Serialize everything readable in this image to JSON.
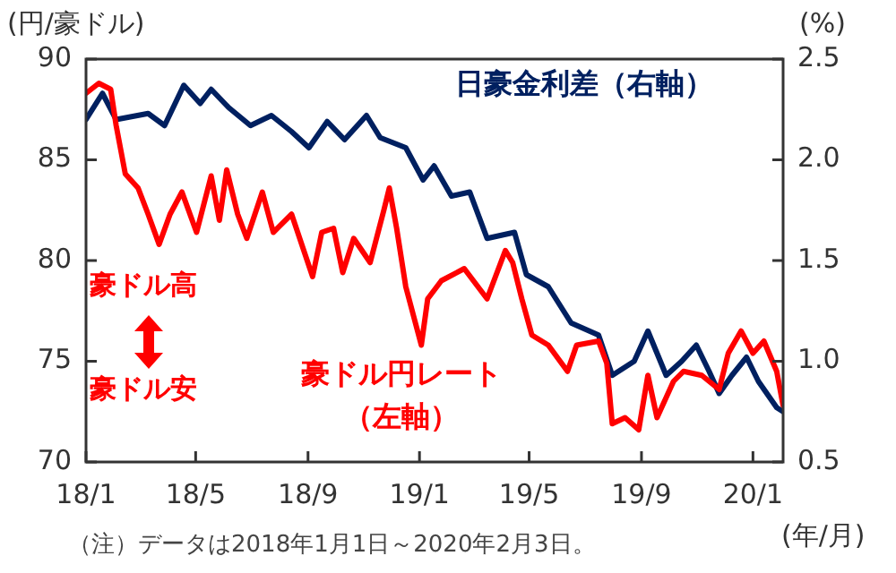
{
  "chart_data": {
    "type": "line",
    "ylabel": "(円/豪ドル)",
    "y2label": "(%)",
    "xlabel": "(年/月)",
    "xlim": [
      "2018-01-01",
      "2020-02-03"
    ],
    "xticks": [
      {
        "value": "2018-01-01",
        "label": "18/1"
      },
      {
        "value": "2018-05-01",
        "label": "18/5"
      },
      {
        "value": "2018-09-01",
        "label": "18/9"
      },
      {
        "value": "2019-01-01",
        "label": "19/1"
      },
      {
        "value": "2019-05-01",
        "label": "19/5"
      },
      {
        "value": "2019-09-01",
        "label": "19/9"
      },
      {
        "value": "2020-01-01",
        "label": "20/1"
      }
    ],
    "ylim": [
      70,
      90
    ],
    "yticks": [
      70,
      75,
      80,
      85,
      90
    ],
    "y2lim": [
      0.5,
      2.5
    ],
    "y2ticks": [
      0.5,
      {
        "value": 1,
        "label": "1.0"
      },
      1.5,
      {
        "value": 2,
        "label": "2.0"
      },
      2.5
    ],
    "grid": false,
    "legend": false,
    "marker": "none",
    "line_style": "solid",
    "annotations": [
      "豪ドル高",
      "豪ドル安",
      "（注）データは2018年1月1日～2020年2月3日。"
    ],
    "series": [
      {
        "name": "豪ドル円レート（左軸）",
        "color": "#ff0000",
        "axis": "y",
        "x": [
          "2018-01-01",
          "2018-01-15",
          "2018-01-28",
          "2018-02-03",
          "2018-02-13",
          "2018-02-27",
          "2018-03-10",
          "2018-03-22",
          "2018-04-03",
          "2018-04-16",
          "2018-05-02",
          "2018-05-18",
          "2018-05-27",
          "2018-06-04",
          "2018-06-16",
          "2018-06-26",
          "2018-07-13",
          "2018-07-25",
          "2018-08-14",
          "2018-09-06",
          "2018-09-16",
          "2018-09-29",
          "2018-10-09",
          "2018-10-21",
          "2018-11-08",
          "2018-11-23",
          "2018-11-29",
          "2018-12-07",
          "2018-12-17",
          "2019-01-03",
          "2019-01-10",
          "2019-01-25",
          "2019-02-19",
          "2019-03-16",
          "2019-04-05",
          "2019-04-13",
          "2019-04-23",
          "2019-05-04",
          "2019-05-22",
          "2019-06-12",
          "2019-06-22",
          "2019-07-16",
          "2019-07-25",
          "2019-07-31",
          "2019-08-14",
          "2019-08-29",
          "2019-09-08",
          "2019-09-18",
          "2019-10-06",
          "2019-10-17",
          "2019-11-06",
          "2019-11-25",
          "2019-12-05",
          "2019-12-19",
          "2020-01-01",
          "2020-01-13",
          "2020-01-27",
          "2020-02-03"
        ],
        "values": [
          88.3,
          88.8,
          88.5,
          86.7,
          84.3,
          83.6,
          82.3,
          80.8,
          82.3,
          83.4,
          81.4,
          84.2,
          82.0,
          84.5,
          82.3,
          81.1,
          83.4,
          81.4,
          82.3,
          79.2,
          81.4,
          81.6,
          79.4,
          81.1,
          79.9,
          82.5,
          83.6,
          81.6,
          78.7,
          75.8,
          78.1,
          79.0,
          79.6,
          78.1,
          80.5,
          79.9,
          78.1,
          76.3,
          75.8,
          74.5,
          75.8,
          76.0,
          74.9,
          71.9,
          72.2,
          71.6,
          74.3,
          72.2,
          74.0,
          74.5,
          74.3,
          73.6,
          75.4,
          76.5,
          75.4,
          76.0,
          74.5,
          72.8
        ]
      },
      {
        "name": "日豪金利差（右軸）",
        "color": "#002060",
        "axis": "y2",
        "x": [
          "2018-01-01",
          "2018-01-19",
          "2018-02-03",
          "2018-03-10",
          "2018-03-28",
          "2018-04-18",
          "2018-05-06",
          "2018-05-18",
          "2018-06-06",
          "2018-06-30",
          "2018-07-23",
          "2018-08-14",
          "2018-09-02",
          "2018-09-22",
          "2018-10-11",
          "2018-11-04",
          "2018-11-19",
          "2018-12-17",
          "2019-01-05",
          "2019-01-17",
          "2019-02-05",
          "2019-02-25",
          "2019-03-16",
          "2019-04-15",
          "2019-04-28",
          "2019-05-22",
          "2019-06-16",
          "2019-07-16",
          "2019-07-31",
          "2019-08-24",
          "2019-09-08",
          "2019-09-28",
          "2019-10-15",
          "2019-10-31",
          "2019-11-14",
          "2019-11-25",
          "2019-12-09",
          "2019-12-25",
          "2020-01-07",
          "2020-01-27",
          "2020-02-03"
        ],
        "values": [
          2.2,
          2.33,
          2.2,
          2.23,
          2.17,
          2.37,
          2.28,
          2.35,
          2.26,
          2.17,
          2.22,
          2.14,
          2.06,
          2.19,
          2.1,
          2.22,
          2.11,
          2.06,
          1.9,
          1.97,
          1.82,
          1.84,
          1.61,
          1.64,
          1.43,
          1.37,
          1.19,
          1.13,
          0.93,
          1.0,
          1.15,
          0.93,
          1.0,
          1.08,
          0.95,
          0.84,
          0.93,
          1.02,
          0.9,
          0.77,
          0.75
        ]
      }
    ]
  }
}
